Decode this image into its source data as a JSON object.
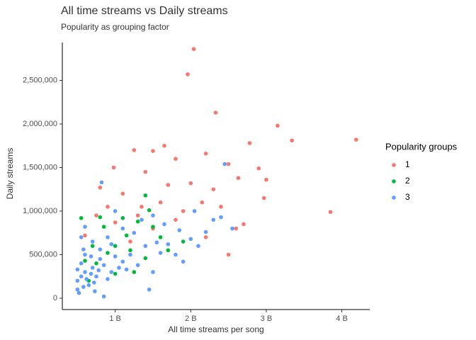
{
  "chart_data": {
    "type": "scatter",
    "title": "All time streams vs Daily streams",
    "subtitle": "Popularity as grouping factor",
    "x_label": "All time streams per song",
    "y_label": "Daily streams",
    "legend_title": "Popularity groups",
    "legend_position": "right",
    "grid": false,
    "xlim": [
      0.3,
      4.37
    ],
    "ylim": [
      -130000,
      2935000
    ],
    "xticks": [
      {
        "value": 1,
        "label": "1 B"
      },
      {
        "value": 2,
        "label": "2 B"
      },
      {
        "value": 3,
        "label": "3 B"
      },
      {
        "value": 4,
        "label": "4 B"
      }
    ],
    "yticks": [
      0,
      {
        "value": 500000,
        "label": "500,000"
      },
      {
        "value": 1000000,
        "label": "1,000,000"
      },
      {
        "value": 1500000,
        "label": "1,500,000"
      },
      {
        "value": 2000000,
        "label": "2,000,000"
      },
      {
        "value": 2500000,
        "label": "2,500,000"
      }
    ],
    "series": [
      {
        "name": "1",
        "color": "#F8766D",
        "x": [
          2.04,
          1.96,
          2.33,
          3.15,
          3.34,
          4.19,
          3.85,
          2.78,
          2.9,
          3.0,
          2.97,
          2.63,
          2.5,
          2.5,
          2.2,
          1.65,
          1.5,
          1.25,
          0.98,
          1.8,
          2.0,
          2.3,
          1.4,
          1.1,
          0.8,
          1.6,
          1.9,
          2.6,
          1.3,
          0.75,
          1.0,
          1.5,
          2.2,
          1.2,
          1.8,
          2.4,
          0.6,
          1.7,
          2.15,
          2.7,
          1.35,
          0.9
        ],
        "values": [
          2860000,
          2570000,
          2130000,
          1980000,
          1810000,
          1820000,
          990000,
          1780000,
          1490000,
          1360000,
          1150000,
          1380000,
          500000,
          1540000,
          1660000,
          1750000,
          1690000,
          1700000,
          1500000,
          1600000,
          1320000,
          1250000,
          1450000,
          1200000,
          1270000,
          1100000,
          1000000,
          800000,
          950000,
          950000,
          870000,
          800000,
          700000,
          650000,
          900000,
          1050000,
          720000,
          1300000,
          1100000,
          850000,
          1050000,
          1050000
        ]
      },
      {
        "name": "2",
        "color": "#00BA38",
        "x": [
          0.55,
          0.8,
          1.1,
          1.4,
          1.3,
          1.0,
          0.7,
          1.5,
          1.9,
          1.2,
          0.9,
          0.6,
          1.4,
          1.0,
          0.75,
          1.6,
          0.85,
          1.7,
          1.25,
          0.65,
          1.45,
          1.15
        ],
        "values": [
          920000,
          930000,
          920000,
          1180000,
          880000,
          600000,
          600000,
          820000,
          650000,
          550000,
          520000,
          430000,
          460000,
          280000,
          400000,
          700000,
          820000,
          550000,
          300000,
          200000,
          1010000,
          720000
        ]
      },
      {
        "name": "3",
        "color": "#619CFF",
        "x": [
          0.5,
          0.55,
          0.6,
          0.5,
          0.65,
          0.7,
          0.55,
          0.6,
          0.75,
          0.8,
          0.5,
          0.58,
          0.62,
          0.68,
          0.72,
          0.78,
          0.85,
          0.9,
          0.95,
          1.0,
          1.05,
          1.1,
          1.2,
          1.3,
          1.4,
          1.5,
          1.6,
          1.7,
          1.8,
          1.9,
          2.0,
          2.1,
          2.2,
          2.3,
          2.45,
          2.55,
          0.82,
          1.0,
          0.55,
          0.6,
          0.7,
          0.9,
          1.1,
          1.25,
          1.35,
          1.5,
          1.65,
          0.85,
          1.45,
          0.52,
          0.8,
          0.95,
          1.15,
          0.68,
          0.58,
          2.4,
          1.85,
          2.05,
          1.55,
          0.73
        ],
        "values": [
          100000,
          250000,
          300000,
          200000,
          150000,
          350000,
          400000,
          500000,
          250000,
          450000,
          330000,
          130000,
          220000,
          280000,
          180000,
          320000,
          380000,
          220000,
          300000,
          480000,
          350000,
          420000,
          500000,
          380000,
          600000,
          300000,
          520000,
          620000,
          500000,
          420000,
          680000,
          600000,
          760000,
          900000,
          1540000,
          800000,
          1330000,
          1000000,
          700000,
          820000,
          650000,
          700000,
          800000,
          750000,
          900000,
          950000,
          850000,
          20000,
          100000,
          60000,
          560000,
          620000,
          330000,
          480000,
          560000,
          930000,
          780000,
          1000000,
          640000,
          80000
        ]
      }
    ]
  }
}
